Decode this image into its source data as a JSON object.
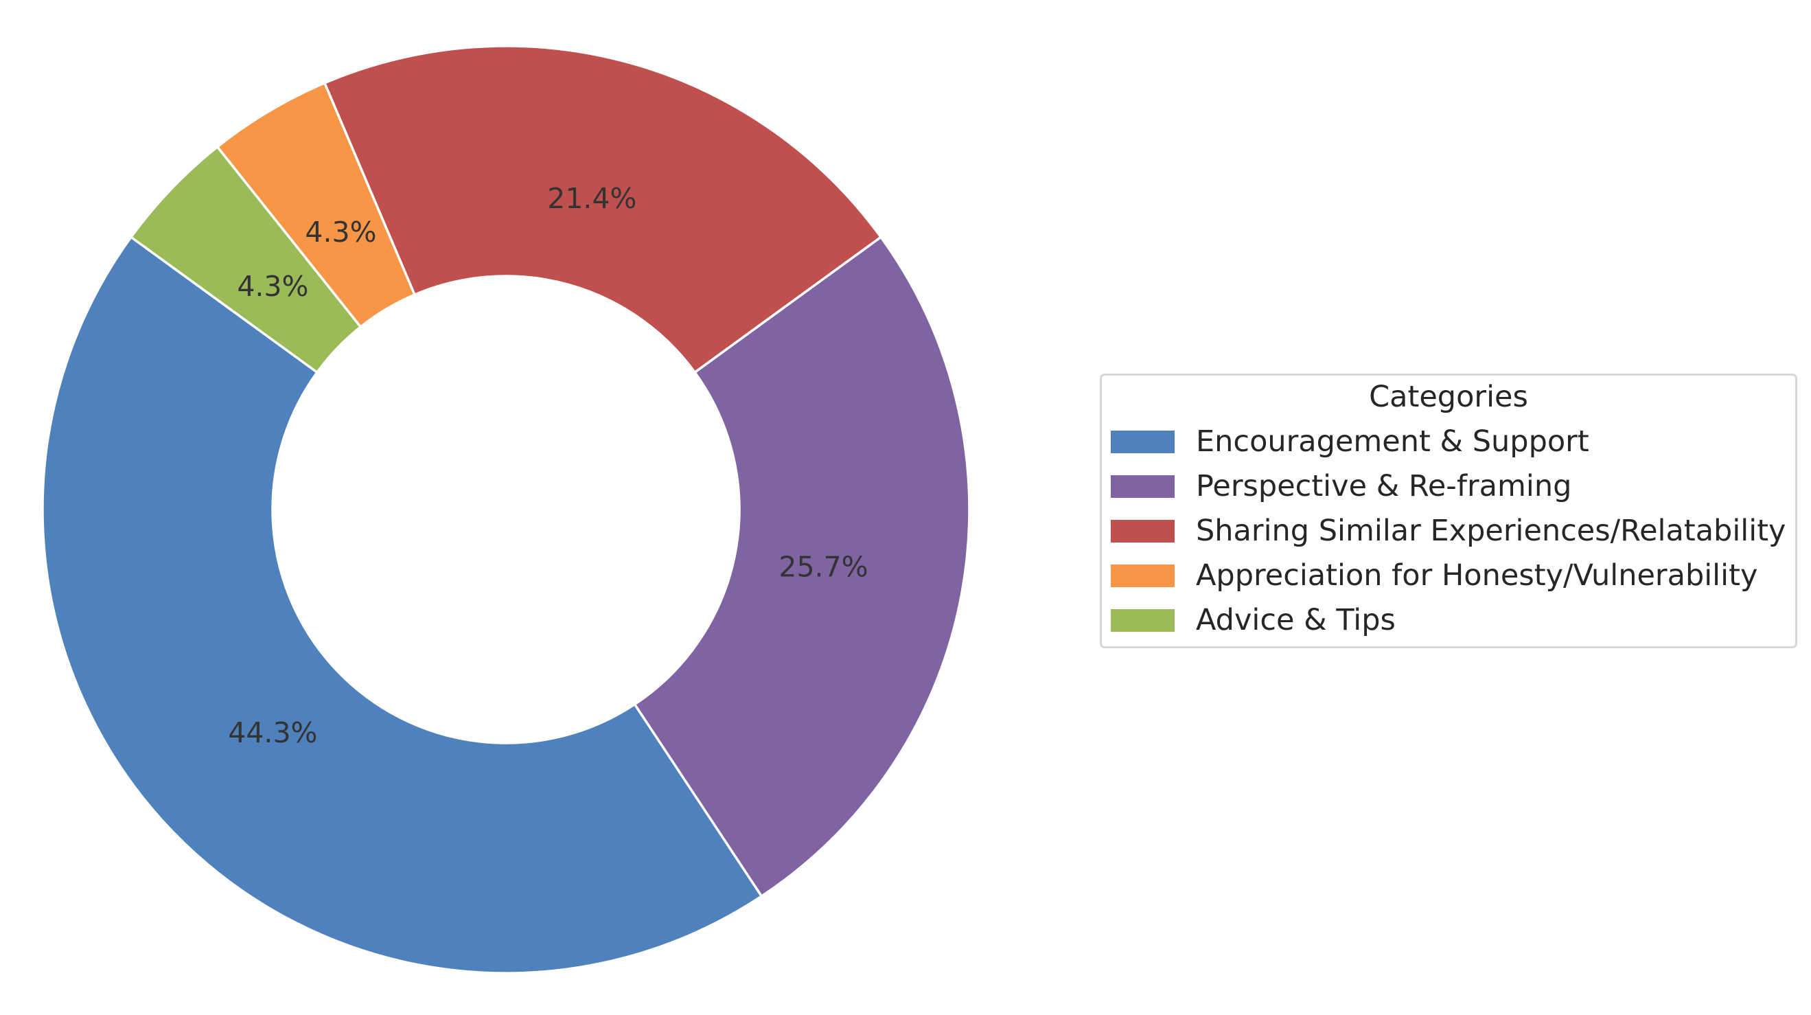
{
  "chart_data": {
    "type": "pie",
    "donut": true,
    "title": "",
    "legend_title": "Categories",
    "legend_placement": "right",
    "start_angle_deg": 144,
    "direction": "counterclockwise",
    "series": [
      {
        "label": "Encouragement & Support",
        "value": 44.3,
        "color": "#4f81bd"
      },
      {
        "label": "Perspective & Re-framing",
        "value": 25.7,
        "color": "#8064a2"
      },
      {
        "label": "Sharing Similar Experiences/Relatability",
        "value": 21.4,
        "color": "#c0504d"
      },
      {
        "label": "Appreciation for Honesty/Vulnerability",
        "value": 4.3,
        "color": "#f79646"
      },
      {
        "label": "Advice & Tips",
        "value": 4.3,
        "color": "#9bbb59"
      }
    ],
    "pct_labels": [
      "44.3%",
      "25.7%",
      "21.4%",
      "4.3%",
      "4.3%"
    ]
  }
}
